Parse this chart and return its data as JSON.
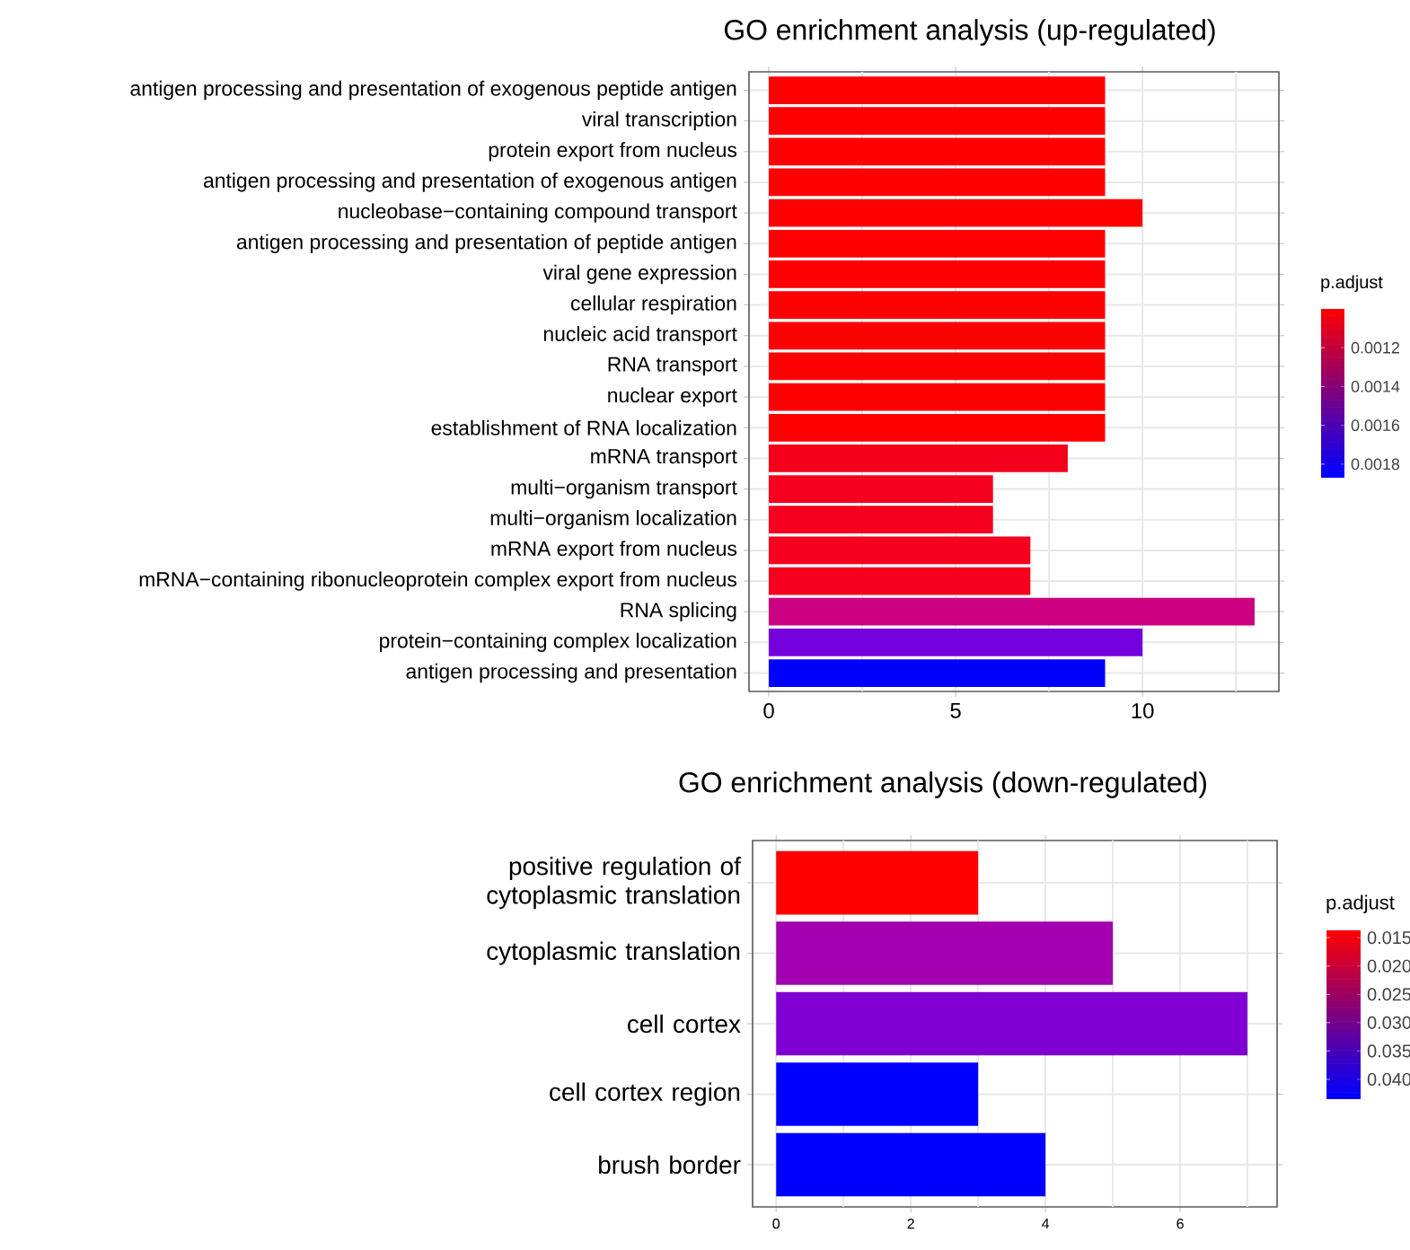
{
  "chart_data": [
    {
      "type": "bar",
      "orientation": "horizontal",
      "title": "GO enrichment analysis (up-regulated)",
      "categories": [
        "antigen processing and presentation of exogenous peptide antigen",
        "viral transcription",
        "protein export from nucleus",
        "antigen processing and presentation of exogenous antigen",
        "nucleobase−containing compound transport",
        "antigen processing and presentation of peptide antigen",
        "viral gene expression",
        "cellular respiration",
        "nucleic acid transport",
        "RNA transport",
        "nuclear export",
        "establishment of RNA localization",
        "mRNA transport",
        "multi−organism transport",
        "multi−organism localization",
        "mRNA export from nucleus",
        "mRNA−containing ribonucleoprotein complex export from nucleus",
        "RNA splicing",
        "protein−containing complex localization",
        "antigen processing and presentation"
      ],
      "values": [
        9,
        9,
        9,
        9,
        10,
        9,
        9,
        9,
        9,
        9,
        9,
        9,
        8,
        6,
        6,
        7,
        7,
        13,
        10,
        9
      ],
      "colors": [
        "#fd0002",
        "#fd0002",
        "#fd0002",
        "#fd0002",
        "#fe0000",
        "#fd0002",
        "#fd0002",
        "#fd0002",
        "#fd0002",
        "#fd0002",
        "#fd0002",
        "#fd0002",
        "#f5001a",
        "#f5001e",
        "#f5001e",
        "#f5001e",
        "#f5001e",
        "#cc0080",
        "#7300dd",
        "#0000ff"
      ],
      "xlim": [
        -0.53,
        13.65
      ],
      "xticks": [
        0,
        {
          "value": 2.5,
          "label": null
        },
        5,
        {
          "value": 7.5,
          "label": null
        },
        10,
        {
          "value": 12.5,
          "label": null
        }
      ],
      "grid": true,
      "clabel": "p.adjust",
      "clim": [
        0.00187,
        0.001
      ],
      "cticks": [
        0.0012,
        0.0014,
        0.0016,
        0.0018
      ]
    },
    {
      "type": "bar",
      "orientation": "horizontal",
      "title": "GO enrichment analysis (down-regulated)",
      "categories": [
        "positive regulation of cytoplasmic translation",
        "cytoplasmic translation",
        "cell cortex",
        "cell cortex region",
        "brush border"
      ],
      "values": [
        3,
        5,
        7,
        3,
        4
      ],
      "colors": [
        "#ff0000",
        "#a200b0",
        "#8000d4",
        "#0000ff",
        "#0000ff"
      ],
      "xlim": [
        -0.35,
        7.44
      ],
      "xticks": [
        0,
        {
          "value": 1,
          "label": null
        },
        2,
        {
          "value": 3,
          "label": null
        },
        4,
        {
          "value": 5,
          "label": null
        },
        6,
        {
          "value": 7,
          "label": null
        }
      ],
      "grid": true,
      "clabel": "p.adjust",
      "clim": [
        0.0435,
        0.0137
      ],
      "cticks": [
        0.015,
        {
          "value": 0.02,
          "label": "0.020"
        },
        0.025,
        {
          "value": 0.03,
          "label": "0.030"
        },
        0.035,
        {
          "value": 0.04,
          "label": "0.040"
        }
      ]
    }
  ]
}
